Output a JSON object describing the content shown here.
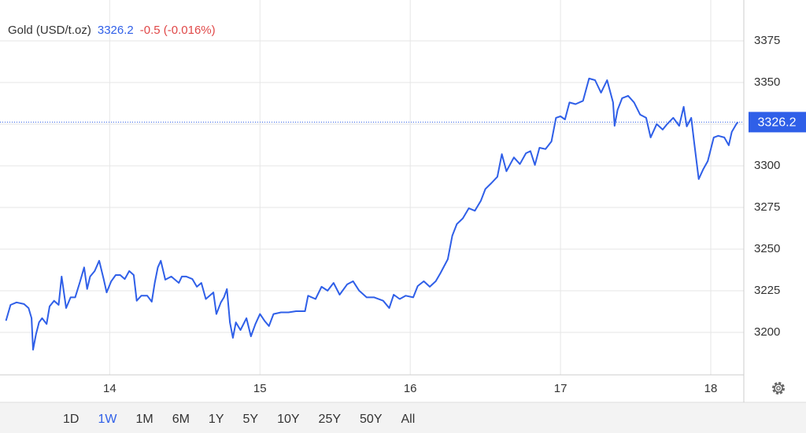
{
  "chart_data": {
    "type": "line",
    "title": "Gold (USD/t.oz)",
    "price": 3326.2,
    "change": "-0.5 (-0.016%)",
    "ranges": [
      "1D",
      "1W",
      "1M",
      "6M",
      "1Y",
      "5Y",
      "10Y",
      "25Y",
      "50Y",
      "All"
    ],
    "selected_range": "1W",
    "xlim": [
      13.27,
      18.22
    ],
    "xticks": [
      14,
      15,
      16,
      17,
      18
    ],
    "ylim": [
      3174.5,
      3399.5
    ],
    "yticks": [
      3200,
      3225,
      3250,
      3275,
      3300,
      3325,
      3350,
      3375
    ],
    "grid": true,
    "x": [
      13.31,
      13.34,
      13.38,
      13.43,
      13.46,
      13.48,
      13.49,
      13.51,
      13.53,
      13.55,
      13.58,
      13.6,
      13.63,
      13.66,
      13.68,
      13.71,
      13.74,
      13.77,
      13.8,
      13.83,
      13.85,
      13.87,
      13.9,
      13.93,
      13.96,
      13.98,
      14.01,
      14.04,
      14.07,
      14.1,
      14.13,
      14.16,
      14.18,
      14.21,
      14.25,
      14.28,
      14.3,
      14.32,
      14.34,
      14.37,
      14.41,
      14.46,
      14.48,
      14.51,
      14.55,
      14.58,
      14.61,
      14.64,
      14.69,
      14.71,
      14.74,
      14.76,
      14.78,
      14.8,
      14.82,
      14.84,
      14.87,
      14.91,
      14.94,
      14.97,
      15.0,
      15.03,
      15.06,
      15.09,
      15.14,
      15.19,
      15.24,
      15.3,
      15.32,
      15.37,
      15.41,
      15.45,
      15.49,
      15.53,
      15.58,
      15.62,
      15.66,
      15.71,
      15.76,
      15.82,
      15.86,
      15.89,
      15.93,
      15.97,
      16.02,
      16.05,
      16.09,
      16.13,
      16.17,
      16.2,
      16.25,
      16.28,
      16.31,
      16.35,
      16.39,
      16.43,
      16.47,
      16.5,
      16.54,
      16.58,
      16.61,
      16.64,
      16.69,
      16.73,
      16.77,
      16.8,
      16.83,
      16.86,
      16.9,
      16.94,
      16.97,
      17.0,
      17.03,
      17.06,
      17.1,
      17.15,
      17.19,
      17.23,
      17.27,
      17.31,
      17.35,
      17.36,
      17.38,
      17.41,
      17.45,
      17.49,
      17.53,
      17.57,
      17.6,
      17.64,
      17.68,
      17.71,
      17.75,
      17.79,
      17.82,
      17.84,
      17.87,
      17.89,
      17.92,
      17.95,
      17.98,
      18.02,
      18.05,
      18.09,
      18.12,
      18.14,
      18.17,
      18.18
    ],
    "series": [
      {
        "name": "Gold",
        "color": "#2f5fe8",
        "values": [
          3207,
          3216.5,
          3218,
          3217,
          3214.6,
          3208.5,
          3189.6,
          3199,
          3206,
          3208.5,
          3205,
          3215.6,
          3219,
          3216.5,
          3233.5,
          3214.6,
          3221,
          3221,
          3229.7,
          3239,
          3226,
          3233.5,
          3236.8,
          3243,
          3232,
          3224,
          3230.7,
          3234.4,
          3234.4,
          3232,
          3236.8,
          3234.4,
          3219,
          3222,
          3222,
          3218.4,
          3229.7,
          3239,
          3243,
          3231.6,
          3233.5,
          3229.7,
          3233.5,
          3233.5,
          3232,
          3227.4,
          3229.7,
          3220,
          3224,
          3211,
          3218,
          3221,
          3226,
          3206,
          3196.7,
          3206,
          3201.4,
          3208.5,
          3197.6,
          3205,
          3211,
          3207,
          3203.8,
          3211,
          3212,
          3212,
          3212.7,
          3212.7,
          3222,
          3220,
          3227.4,
          3225,
          3229.7,
          3222.6,
          3228.8,
          3230.7,
          3225,
          3221,
          3221,
          3219,
          3214.6,
          3222.6,
          3220,
          3222,
          3221,
          3227.8,
          3230.7,
          3227.4,
          3230.7,
          3235.4,
          3243.9,
          3258,
          3265,
          3268.4,
          3274.5,
          3273,
          3279,
          3286,
          3289.6,
          3293.4,
          3307,
          3296.7,
          3305,
          3301,
          3307.5,
          3308.8,
          3300.5,
          3310.8,
          3310,
          3314.6,
          3328.8,
          3329.7,
          3327.8,
          3338,
          3337,
          3339,
          3352.4,
          3351.4,
          3343.9,
          3351.4,
          3338,
          3324,
          3333.5,
          3340.6,
          3342,
          3338,
          3330.7,
          3328.8,
          3317,
          3325,
          3321.7,
          3325,
          3328.8,
          3324,
          3335.4,
          3323.6,
          3328.8,
          3313.7,
          3292,
          3298,
          3302.8,
          3317,
          3318,
          3317,
          3312.3,
          3320.3,
          3325,
          3326.2
        ]
      }
    ]
  }
}
